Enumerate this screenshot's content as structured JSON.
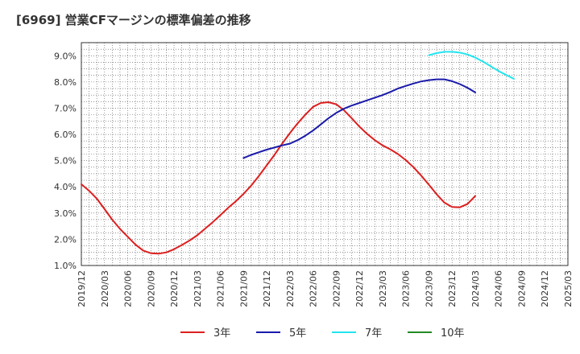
{
  "title": "[6969]  営業CFマージンの標準偏差の推移",
  "chart_data": {
    "type": "line",
    "title": "[6969]  営業CFマージンの標準偏差の推移",
    "xlabel": "",
    "ylabel": "",
    "ylim": [
      1.0,
      9.5
    ],
    "yticks": [
      "1.0%",
      "2.0%",
      "3.0%",
      "4.0%",
      "5.0%",
      "6.0%",
      "7.0%",
      "8.0%",
      "9.0%"
    ],
    "x_ticks": [
      "2019/12",
      "2020/03",
      "2020/06",
      "2020/09",
      "2020/12",
      "2021/03",
      "2021/06",
      "2021/09",
      "2021/12",
      "2022/03",
      "2022/06",
      "2022/09",
      "2022/12",
      "2023/03",
      "2023/06",
      "2023/09",
      "2023/12",
      "2024/03",
      "2024/06",
      "2024/09",
      "2024/12",
      "2025/03"
    ],
    "grid": true,
    "legend_position": "bottom",
    "series": [
      {
        "name": "3年",
        "color": "#dd1f1f",
        "points": [
          [
            "2019/12",
            4.1
          ],
          [
            "2020/01",
            3.85
          ],
          [
            "2020/02",
            3.55
          ],
          [
            "2020/03",
            3.15
          ],
          [
            "2020/04",
            2.75
          ],
          [
            "2020/05",
            2.4
          ],
          [
            "2020/06",
            2.1
          ],
          [
            "2020/07",
            1.8
          ],
          [
            "2020/08",
            1.57
          ],
          [
            "2020/09",
            1.47
          ],
          [
            "2020/10",
            1.45
          ],
          [
            "2020/11",
            1.5
          ],
          [
            "2020/12",
            1.62
          ],
          [
            "2021/01",
            1.78
          ],
          [
            "2021/02",
            1.95
          ],
          [
            "2021/03",
            2.15
          ],
          [
            "2021/04",
            2.4
          ],
          [
            "2021/05",
            2.65
          ],
          [
            "2021/06",
            2.92
          ],
          [
            "2021/07",
            3.2
          ],
          [
            "2021/08",
            3.45
          ],
          [
            "2021/09",
            3.73
          ],
          [
            "2021/10",
            4.05
          ],
          [
            "2021/11",
            4.42
          ],
          [
            "2021/12",
            4.82
          ],
          [
            "2022/01",
            5.22
          ],
          [
            "2022/02",
            5.65
          ],
          [
            "2022/03",
            6.05
          ],
          [
            "2022/04",
            6.42
          ],
          [
            "2022/05",
            6.75
          ],
          [
            "2022/06",
            7.05
          ],
          [
            "2022/07",
            7.2
          ],
          [
            "2022/08",
            7.23
          ],
          [
            "2022/09",
            7.15
          ],
          [
            "2022/10",
            6.92
          ],
          [
            "2022/11",
            6.62
          ],
          [
            "2022/12",
            6.3
          ],
          [
            "2023/01",
            6.02
          ],
          [
            "2023/02",
            5.78
          ],
          [
            "2023/03",
            5.58
          ],
          [
            "2023/04",
            5.43
          ],
          [
            "2023/05",
            5.25
          ],
          [
            "2023/06",
            5.02
          ],
          [
            "2023/07",
            4.75
          ],
          [
            "2023/08",
            4.43
          ],
          [
            "2023/09",
            4.08
          ],
          [
            "2023/10",
            3.72
          ],
          [
            "2023/11",
            3.4
          ],
          [
            "2023/12",
            3.23
          ],
          [
            "2024/01",
            3.22
          ],
          [
            "2024/02",
            3.35
          ],
          [
            "2024/03",
            3.65
          ]
        ]
      },
      {
        "name": "5年",
        "color": "#1a1aaa",
        "points": [
          [
            "2021/09",
            5.1
          ],
          [
            "2021/10",
            5.22
          ],
          [
            "2021/11",
            5.32
          ],
          [
            "2021/12",
            5.42
          ],
          [
            "2022/01",
            5.5
          ],
          [
            "2022/02",
            5.58
          ],
          [
            "2022/03",
            5.65
          ],
          [
            "2022/04",
            5.78
          ],
          [
            "2022/05",
            5.95
          ],
          [
            "2022/06",
            6.15
          ],
          [
            "2022/07",
            6.38
          ],
          [
            "2022/08",
            6.62
          ],
          [
            "2022/09",
            6.82
          ],
          [
            "2022/10",
            6.98
          ],
          [
            "2022/11",
            7.1
          ],
          [
            "2022/12",
            7.2
          ],
          [
            "2023/01",
            7.3
          ],
          [
            "2023/02",
            7.4
          ],
          [
            "2023/03",
            7.5
          ],
          [
            "2023/04",
            7.62
          ],
          [
            "2023/05",
            7.75
          ],
          [
            "2023/06",
            7.85
          ],
          [
            "2023/07",
            7.94
          ],
          [
            "2023/08",
            8.02
          ],
          [
            "2023/09",
            8.07
          ],
          [
            "2023/10",
            8.1
          ],
          [
            "2023/11",
            8.1
          ],
          [
            "2023/12",
            8.03
          ],
          [
            "2024/01",
            7.92
          ],
          [
            "2024/02",
            7.78
          ],
          [
            "2024/03",
            7.6
          ]
        ]
      },
      {
        "name": "7年",
        "color": "#22e5ef",
        "points": [
          [
            "2023/09",
            9.02
          ],
          [
            "2023/10",
            9.1
          ],
          [
            "2023/11",
            9.15
          ],
          [
            "2023/12",
            9.15
          ],
          [
            "2024/01",
            9.12
          ],
          [
            "2024/02",
            9.05
          ],
          [
            "2024/03",
            8.93
          ],
          [
            "2024/04",
            8.78
          ],
          [
            "2024/05",
            8.6
          ],
          [
            "2024/06",
            8.42
          ],
          [
            "2024/07",
            8.27
          ],
          [
            "2024/08",
            8.12
          ]
        ]
      },
      {
        "name": "10年",
        "color": "#228b22",
        "points": []
      }
    ]
  }
}
